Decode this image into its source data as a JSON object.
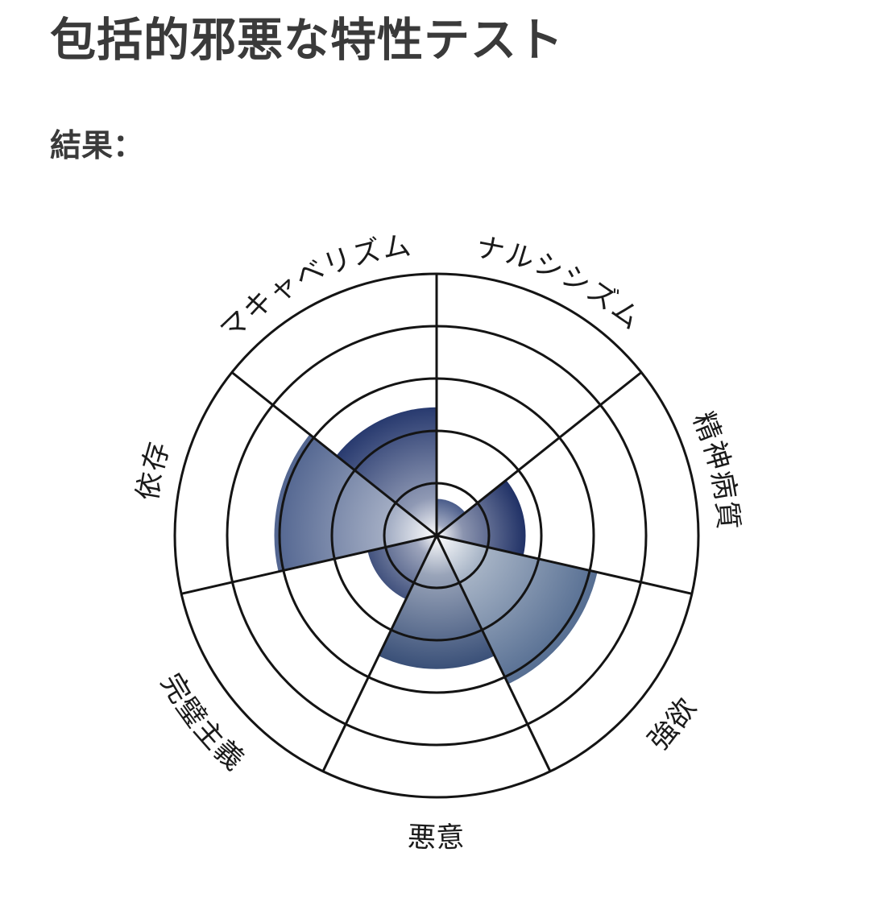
{
  "page": {
    "title": "包括的邪悪な特性テスト",
    "result_label": "結果："
  },
  "chart_data": {
    "type": "polar_area",
    "title": "包括的邪悪な特性テスト",
    "categories": [
      "ナルシシズム",
      "精神病質",
      "強欲",
      "悪意",
      "完璧主義",
      "依存",
      "マキャベリズム"
    ],
    "values": [
      14,
      34,
      63,
      51,
      27,
      62,
      49
    ],
    "max": 100,
    "rings": [
      20,
      40,
      60,
      80,
      100
    ],
    "start_angle_deg": 0,
    "direction": "clockwise",
    "grid_on": true,
    "legend": "none",
    "grid_color": "#141414",
    "axis_label_color": "#1a1a1a",
    "fill_center_color": "#ffffff",
    "sector_edge_colors": [
      "#4a5c8a",
      "#203166",
      "#566e92",
      "#3a5078",
      "#42527e",
      "#526590",
      "#283a6f"
    ]
  },
  "colors": {
    "heading_text": "#3a3a3a",
    "background": "#ffffff"
  }
}
